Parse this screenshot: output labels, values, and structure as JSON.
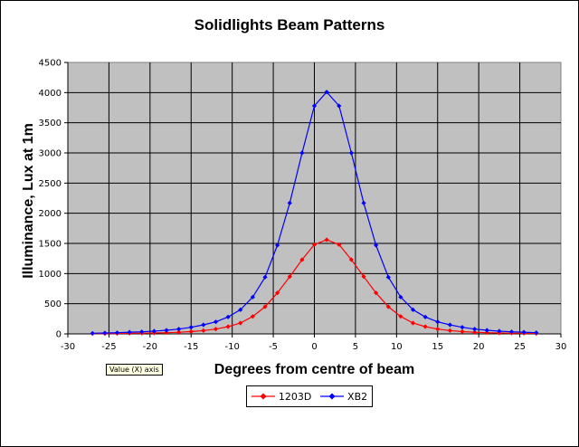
{
  "chart_data": {
    "type": "line",
    "title": "Solidlights Beam Patterns",
    "xlabel": "Degrees from centre of beam",
    "ylabel": "Illuminance, Lux at 1m",
    "xlim": [
      -30,
      30
    ],
    "ylim": [
      0,
      4500
    ],
    "xticks": [
      -30,
      -25,
      -20,
      -15,
      -10,
      -5,
      0,
      5,
      10,
      15,
      20,
      25,
      30
    ],
    "yticks": [
      0,
      500,
      1000,
      1500,
      2000,
      2500,
      3000,
      3500,
      4000,
      4500
    ],
    "grid": true,
    "legend_position": "bottom-center",
    "x": [
      -27,
      -25.5,
      -24,
      -22.5,
      -21,
      -19.5,
      -18,
      -16.5,
      -15,
      -13.5,
      -12,
      -10.5,
      -9,
      -7.5,
      -6,
      -4.5,
      -3,
      -1.5,
      0,
      1.5,
      3,
      4.5,
      6,
      7.5,
      9,
      10.5,
      12,
      13.5,
      15,
      16.5,
      18,
      19.5,
      21,
      22.5,
      24,
      25.5,
      27
    ],
    "series": [
      {
        "name": "1203D",
        "color": "#ff0000",
        "marker": "diamond",
        "values": [
          5,
          6,
          8,
          10,
          12,
          15,
          20,
          27,
          37,
          55,
          80,
          120,
          180,
          290,
          450,
          680,
          950,
          1230,
          1480,
          1560,
          1480,
          1230,
          950,
          680,
          450,
          290,
          180,
          120,
          80,
          55,
          37,
          27,
          20,
          15,
          12,
          10,
          8
        ]
      },
      {
        "name": "XB2",
        "color": "#0000ff",
        "marker": "diamond",
        "values": [
          10,
          15,
          20,
          28,
          35,
          45,
          60,
          80,
          110,
          150,
          200,
          280,
          400,
          610,
          940,
          1470,
          2170,
          3000,
          3780,
          4010,
          3780,
          3000,
          2170,
          1470,
          940,
          610,
          400,
          280,
          200,
          150,
          110,
          80,
          60,
          45,
          35,
          28,
          20
        ]
      }
    ]
  },
  "tooltip": "Value (X) axis"
}
